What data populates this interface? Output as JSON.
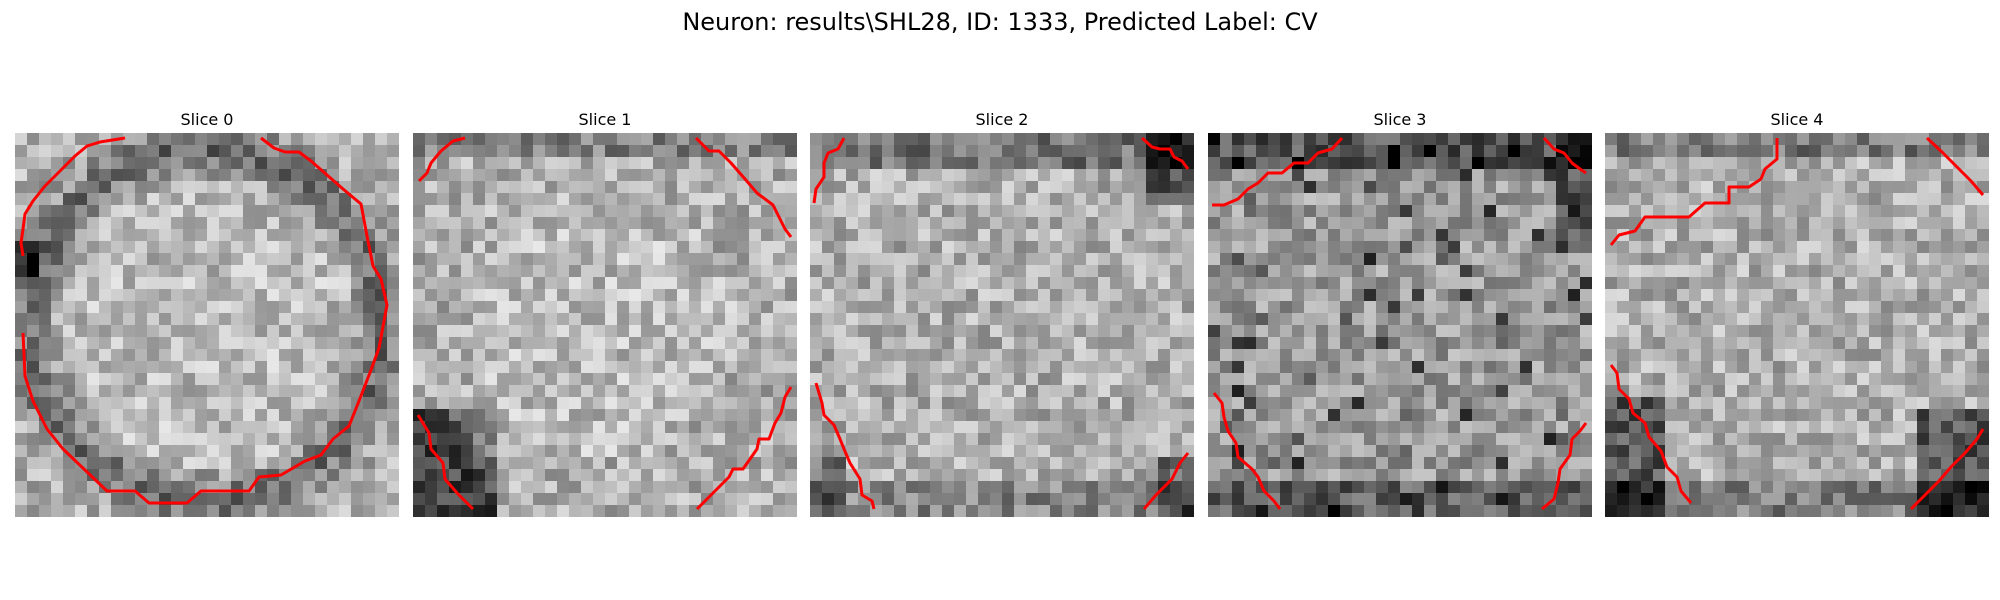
{
  "figure": {
    "title": "Neuron: results\\SHL28, ID: 1333, Predicted Label: CV"
  },
  "slices": [
    {
      "title": "Slice 0",
      "seed": 11,
      "contour_color": "#ff0000",
      "darkness": "ring-strong-left"
    },
    {
      "title": "Slice 1",
      "seed": 23,
      "contour_color": "#ff0000",
      "darkness": "bottom-left"
    },
    {
      "title": "Slice 2",
      "seed": 37,
      "contour_color": "#ff0000",
      "darkness": "corners"
    },
    {
      "title": "Slice 3",
      "seed": 51,
      "contour_color": "#ff0000",
      "darkness": "mottled"
    },
    {
      "title": "Slice 4",
      "seed": 67,
      "contour_color": "#ff0000",
      "darkness": "bottom-corners"
    }
  ]
}
